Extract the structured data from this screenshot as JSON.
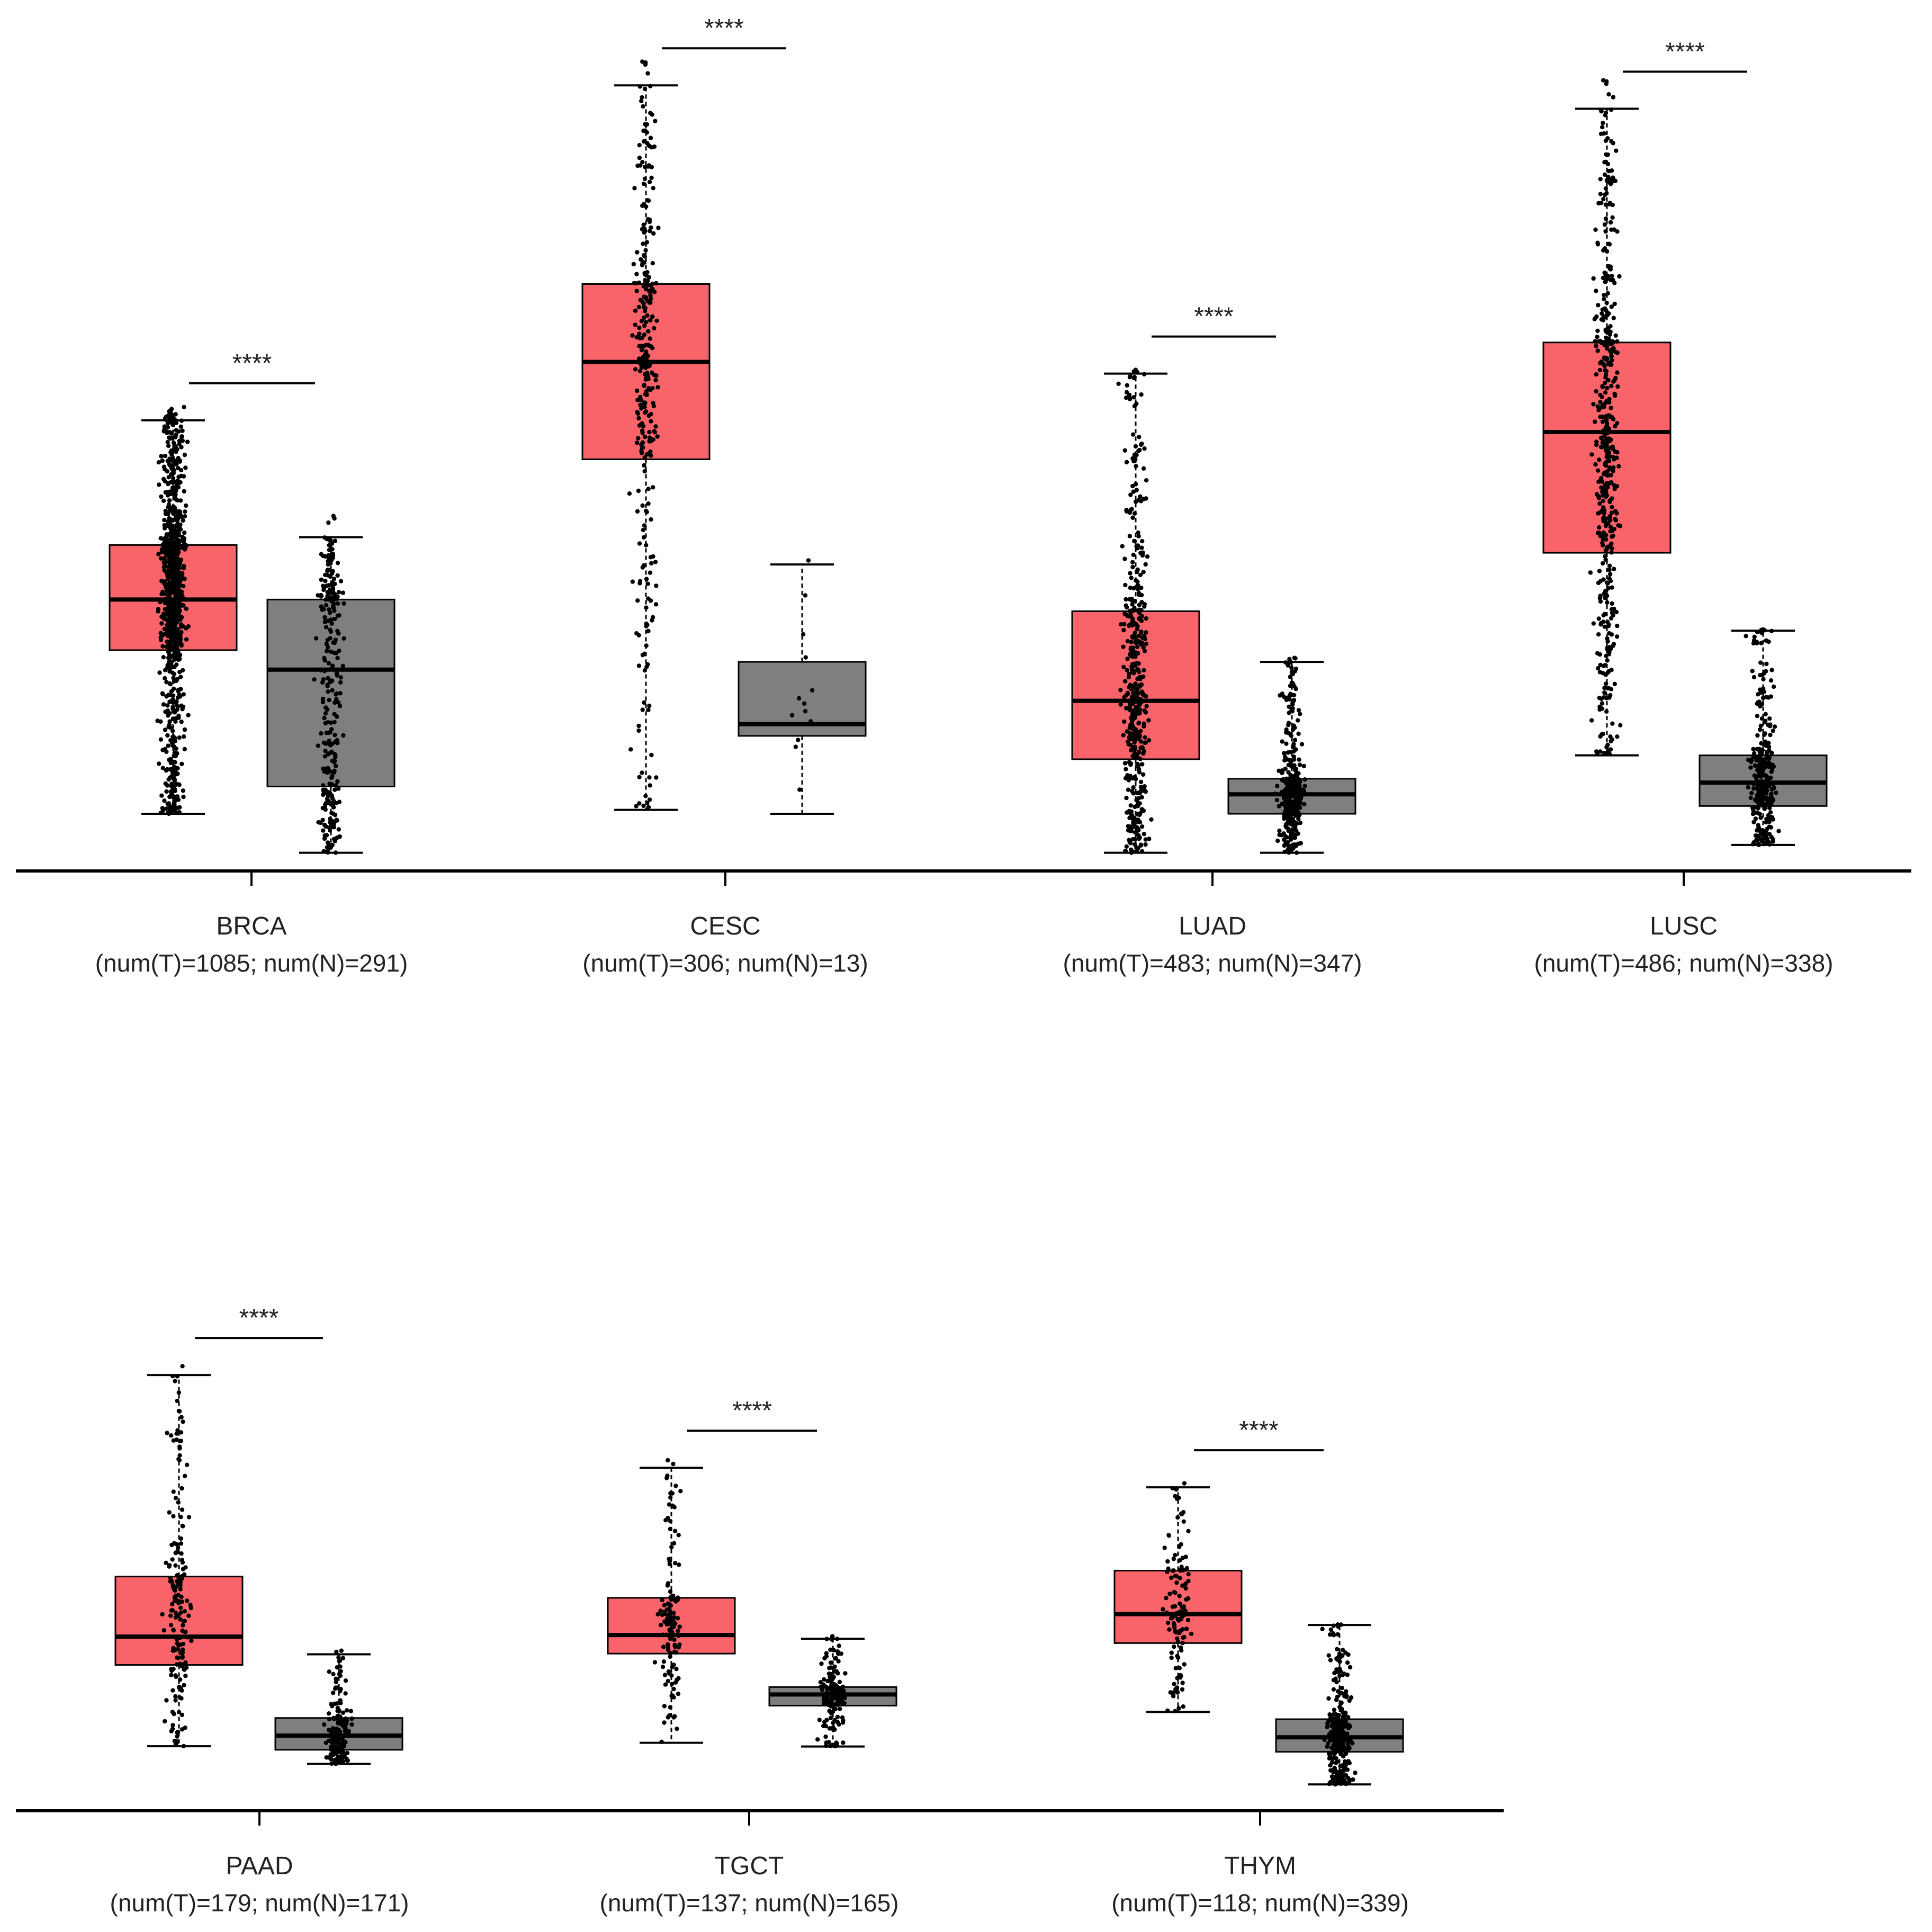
{
  "colors": {
    "tumor": "#f8646a",
    "normal": "#7f7f7f",
    "points": "#000000",
    "axis": "#000000"
  },
  "significance_label": "****",
  "chart_data": [
    {
      "type": "box",
      "cancer": "BRCA",
      "counts_label": "(num(T)=1085; num(N)=291)",
      "tumor": {
        "n": 1085,
        "min": 0.0,
        "q1": 2.1,
        "median": 2.75,
        "q3": 3.45,
        "max": 5.05
      },
      "normal": {
        "n": 291,
        "min": -0.5,
        "q1": 0.35,
        "median": 1.85,
        "q3": 2.75,
        "max": 3.55
      },
      "y_range": [
        -0.7,
        9.8
      ]
    },
    {
      "type": "box",
      "cancer": "CESC",
      "counts_label": "(num(T)=306; num(N)=13)",
      "tumor": {
        "n": 306,
        "min": 0.05,
        "q1": 4.55,
        "median": 5.8,
        "q3": 6.8,
        "max": 9.35
      },
      "normal": {
        "n": 13,
        "min": 0.0,
        "q1": 1.0,
        "median": 1.15,
        "q3": 1.95,
        "max": 3.2
      },
      "y_range": [
        -0.7,
        9.8
      ]
    },
    {
      "type": "box",
      "cancer": "LUAD",
      "counts_label": "(num(T)=483; num(N)=347)",
      "tumor": {
        "n": 483,
        "min": -0.5,
        "q1": 0.7,
        "median": 1.45,
        "q3": 2.6,
        "max": 5.65
      },
      "normal": {
        "n": 347,
        "min": -0.5,
        "q1": 0.0,
        "median": 0.25,
        "q3": 0.45,
        "max": 1.95
      },
      "y_range": [
        -0.7,
        9.8
      ]
    },
    {
      "type": "box",
      "cancer": "LUSC",
      "counts_label": "(num(T)=486; num(N)=338)",
      "tumor": {
        "n": 486,
        "min": 0.75,
        "q1": 3.35,
        "median": 4.9,
        "q3": 6.05,
        "max": 9.05
      },
      "normal": {
        "n": 338,
        "min": -0.4,
        "q1": 0.1,
        "median": 0.4,
        "q3": 0.75,
        "max": 2.35
      },
      "y_range": [
        -0.7,
        9.8
      ]
    },
    {
      "type": "box",
      "cancer": "PAAD",
      "counts_label": "(num(T)=179; num(N)=171)",
      "tumor": {
        "n": 179,
        "min": -0.25,
        "q1": 0.9,
        "median": 1.3,
        "q3": 2.15,
        "max": 5.0
      },
      "normal": {
        "n": 171,
        "min": -0.5,
        "q1": -0.3,
        "median": -0.1,
        "q3": 0.15,
        "max": 1.05
      },
      "y_range": [
        -1.2,
        7.0
      ]
    },
    {
      "type": "box",
      "cancer": "TGCT",
      "counts_label": "(num(T)=137; num(N)=165)",
      "tumor": {
        "n": 137,
        "min": 0.15,
        "q1": 1.35,
        "median": 1.6,
        "q3": 2.1,
        "max": 3.85
      },
      "normal": {
        "n": 165,
        "min": 0.1,
        "q1": 0.65,
        "median": 0.8,
        "q3": 0.9,
        "max": 1.55
      },
      "y_range": [
        -0.8,
        7.0
      ]
    },
    {
      "type": "box",
      "cancer": "THYM",
      "counts_label": "(num(T)=118; num(N)=339)",
      "tumor": {
        "n": 118,
        "min": 0.4,
        "q1": 1.35,
        "median": 1.75,
        "q3": 2.35,
        "max": 3.5
      },
      "normal": {
        "n": 339,
        "min": -0.6,
        "q1": -0.15,
        "median": 0.05,
        "q3": 0.3,
        "max": 1.6
      },
      "y_range": [
        -1.0,
        7.0
      ]
    }
  ]
}
